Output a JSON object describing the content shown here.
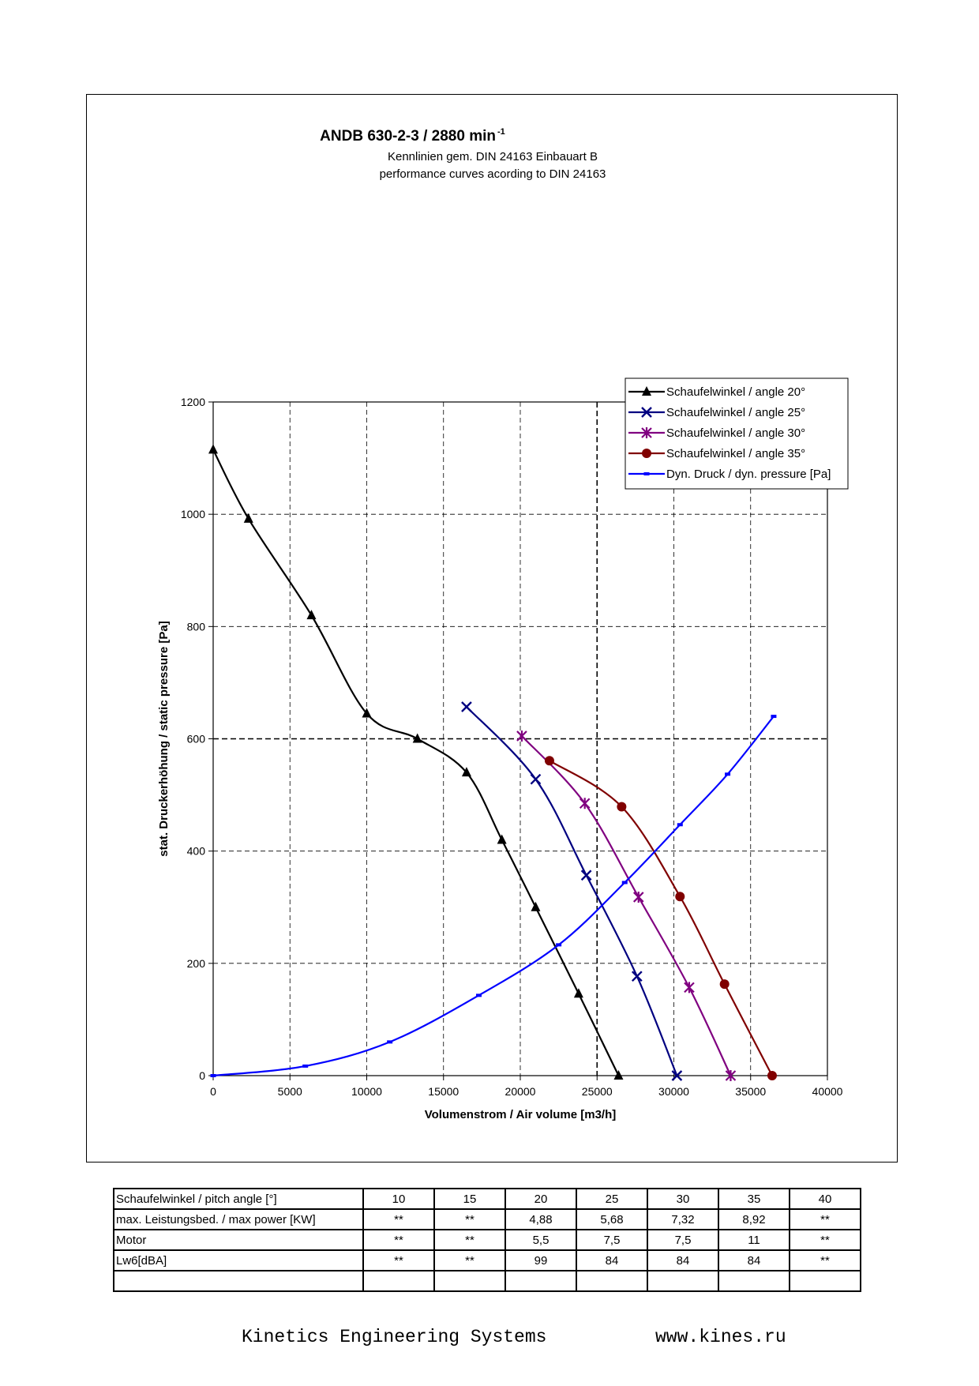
{
  "chart_data": {
    "type": "line",
    "title": "ANDB 630-2-3 / 2880 min",
    "title_superscript": "-1",
    "subtitle_lines": [
      "Kennlinien gem. DIN 24163 Einbauart B",
      "performance curves acording to DIN 24163"
    ],
    "xlabel": "Volumenstrom / Air volume [m3/h]",
    "ylabel": "stat. Druckerhöhung / static pressure [Pa]",
    "xlim": [
      0,
      40000
    ],
    "ylim": [
      0,
      1200
    ],
    "xticks": [
      0,
      5000,
      10000,
      15000,
      20000,
      25000,
      30000,
      35000,
      40000
    ],
    "yticks": [
      0,
      200,
      400,
      600,
      800,
      1000,
      1200
    ],
    "grid": "dashed",
    "reference_lines": {
      "x": 25000,
      "y": 600
    },
    "legend_position": "top-right",
    "series": [
      {
        "name": "Schaufelwinkel / angle 20°",
        "color": "#000000",
        "marker": "triangle",
        "x": [
          0,
          2300,
          6400,
          10000,
          13300,
          16500,
          18800,
          21000,
          23800,
          26400
        ],
        "y": [
          1115,
          992,
          820,
          645,
          600,
          540,
          420,
          300,
          146,
          0
        ]
      },
      {
        "name": "Schaufelwinkel / angle 25°",
        "color": "#000080",
        "marker": "x",
        "x": [
          16500,
          21000,
          24300,
          27600,
          30200
        ],
        "y": [
          657,
          528,
          357,
          177,
          0
        ]
      },
      {
        "name": "Schaufelwinkel / angle 30°",
        "color": "#800080",
        "marker": "star",
        "x": [
          20100,
          24200,
          27700,
          31000,
          33700
        ],
        "y": [
          605,
          485,
          318,
          157,
          0
        ]
      },
      {
        "name": "Schaufelwinkel / angle 35°",
        "color": "#800000",
        "marker": "circle",
        "x": [
          21900,
          26600,
          30400,
          33300,
          36400
        ],
        "y": [
          561,
          479,
          319,
          163,
          0
        ]
      },
      {
        "name": "Dyn. Druck / dyn. pressure [Pa]",
        "color": "#0000ff",
        "marker": "dash",
        "x": [
          0,
          6000,
          11500,
          17300,
          22500,
          26800,
          30400,
          33500,
          36500
        ],
        "y": [
          0,
          17,
          60,
          143,
          233,
          344,
          447,
          537,
          640
        ]
      }
    ]
  },
  "table": {
    "rows": [
      [
        "Schaufelwinkel / pitch angle [°]",
        "10",
        "15",
        "20",
        "25",
        "30",
        "35",
        "40"
      ],
      [
        "max. Leistungsbed. / max power [KW]",
        "**",
        "**",
        "4,88",
        "5,68",
        "7,32",
        "8,92",
        "**"
      ],
      [
        "Motor",
        "**",
        "**",
        "5,5",
        "7,5",
        "7,5",
        "11",
        "**"
      ],
      [
        "Lw6[dBA]",
        "**",
        "**",
        "99",
        "84",
        "84",
        "84",
        "**"
      ],
      [
        "",
        "",
        "",
        "",
        "",
        "",
        "",
        ""
      ]
    ]
  },
  "footer": {
    "company": "Kinetics Engineering Systems",
    "url": "www.kines.ru"
  }
}
